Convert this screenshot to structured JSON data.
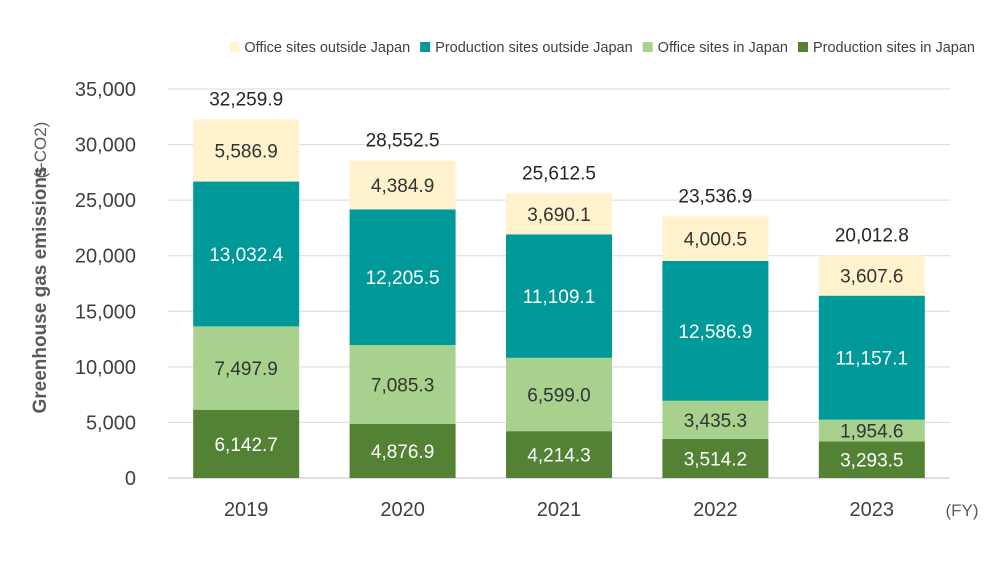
{
  "chart_data": {
    "type": "bar",
    "stacked": true,
    "categories": [
      "2019",
      "2020",
      "2021",
      "2022",
      "2023"
    ],
    "series": [
      {
        "name": "Production sites in Japan",
        "color": "#548235",
        "label_color": "#ffffff",
        "values": [
          6142.7,
          4876.9,
          4214.3,
          3514.2,
          3293.5
        ]
      },
      {
        "name": "Office sites in Japan",
        "color": "#a9d18e",
        "label_color": "#333333",
        "values": [
          7497.9,
          7085.3,
          6599.0,
          3435.3,
          1954.6
        ]
      },
      {
        "name": "Production sites outside Japan",
        "color": "#009999",
        "label_color": "#ffffff",
        "values": [
          13032.4,
          12205.5,
          11109.1,
          12586.9,
          11157.1
        ]
      },
      {
        "name": "Office sites outside Japan",
        "color": "#fff2cc",
        "label_color": "#333333",
        "values": [
          5586.9,
          4384.9,
          3690.1,
          4000.5,
          3607.6
        ]
      }
    ],
    "totals": [
      32259.9,
      28552.5,
      25612.5,
      23536.9,
      20012.8
    ],
    "legend_order": [
      "Office sites outside Japan",
      "Production sites outside Japan",
      "Office sites in Japan",
      "Production sites in Japan"
    ],
    "legend_position": "top-right",
    "ylabel": "Greenhouse gas emissions",
    "ylabel_unit": "(t-CO2)",
    "xlabel": "(FY)",
    "ylim": [
      0,
      35000
    ],
    "yticks": [
      0,
      5000,
      10000,
      15000,
      20000,
      25000,
      30000,
      35000
    ],
    "grid": true
  }
}
